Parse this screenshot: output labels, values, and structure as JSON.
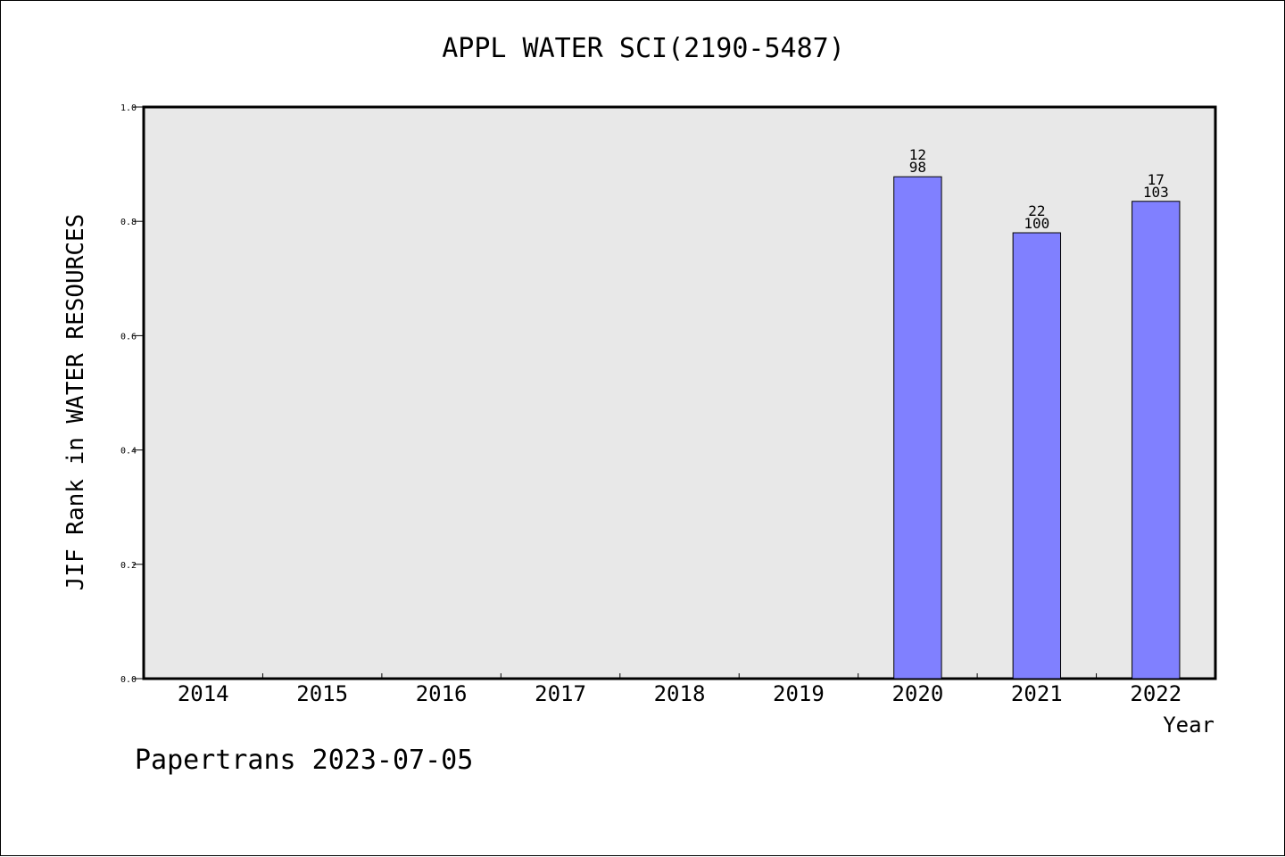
{
  "chart_data": {
    "type": "bar",
    "title": "APPL WATER SCI(2190-5487)",
    "xlabel": "Year",
    "ylabel": "JIF Rank in WATER RESOURCES",
    "ylim": [
      0,
      1.0
    ],
    "yticks": [
      "0.0",
      "0.2",
      "0.4",
      "0.6",
      "0.8",
      "1.0"
    ],
    "categories": [
      "2014",
      "2015",
      "2016",
      "2017",
      "2018",
      "2019",
      "2020",
      "2021",
      "2022"
    ],
    "values": [
      null,
      null,
      null,
      null,
      null,
      null,
      0.878,
      0.78,
      0.835
    ],
    "rank_labels": [
      null,
      null,
      null,
      null,
      null,
      null,
      {
        "rank": "12",
        "total": "98"
      },
      {
        "rank": "22",
        "total": "100"
      },
      {
        "rank": "17",
        "total": "103"
      }
    ],
    "bar_color": "#8080ff",
    "plot_background": "#e8e8e8",
    "grid": false,
    "legend": "none"
  },
  "footer": {
    "text": "Papertrans 2023-07-05"
  }
}
